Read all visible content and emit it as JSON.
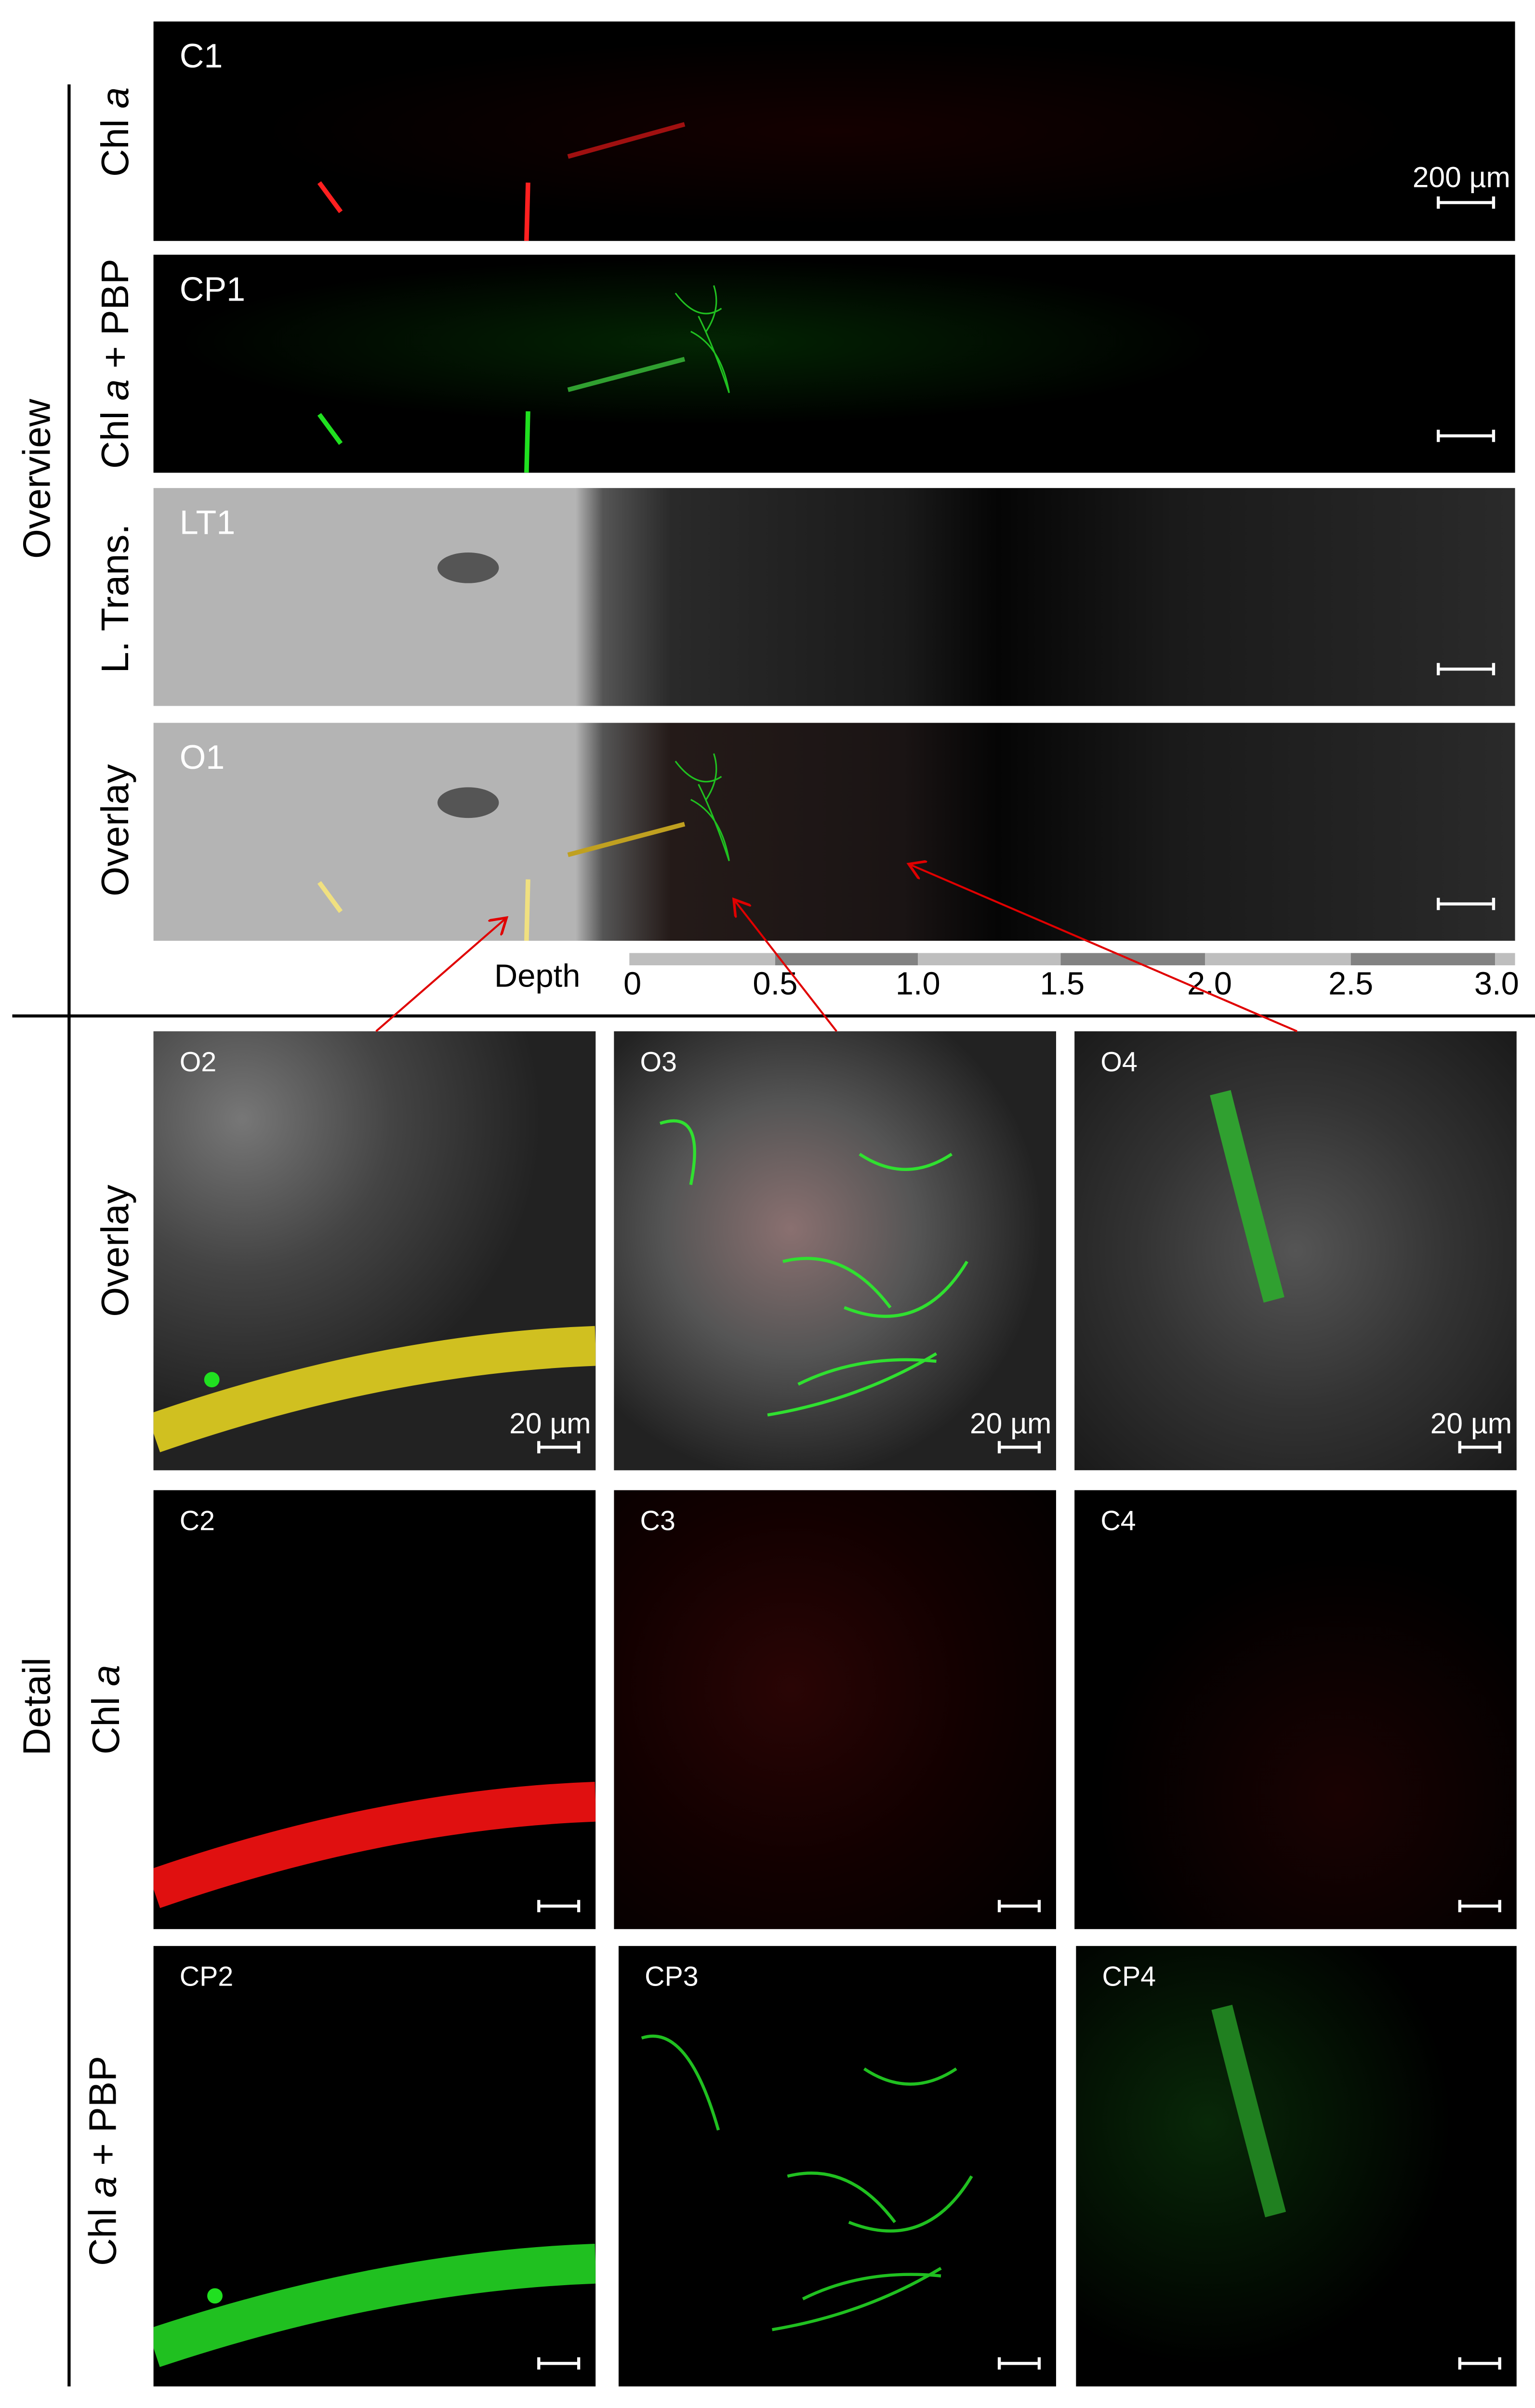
{
  "overview": {
    "section_label": "Overview",
    "rows": [
      {
        "id": "C1",
        "row_label_pre": "Chl ",
        "row_label_italic": "a",
        "row_label_post": ""
      },
      {
        "id": "CP1",
        "row_label_pre": "Chl ",
        "row_label_italic": "a",
        "row_label_post": " + PBP"
      },
      {
        "id": "LT1",
        "row_label_pre": "L. Trans.",
        "row_label_italic": "",
        "row_label_post": ""
      },
      {
        "id": "O1",
        "row_label_pre": "Overlay",
        "row_label_italic": "",
        "row_label_post": ""
      }
    ],
    "scale_bar_label": "200 µm"
  },
  "depth_bar": {
    "label": "Depth",
    "ticks": [
      "0",
      "0.5",
      "1.0",
      "1.5",
      "2.0",
      "2.5",
      "3.0"
    ],
    "colors": {
      "light": "#bebebe",
      "dark": "#828282"
    }
  },
  "detail": {
    "section_label": "Detail",
    "row_labels": [
      {
        "pre": "Overlay",
        "italic": "",
        "post": ""
      },
      {
        "pre": "Chl ",
        "italic": "a",
        "post": ""
      },
      {
        "pre": "Chl ",
        "italic": "a",
        "post": " + PBP"
      }
    ],
    "panels": [
      [
        "O2",
        "O3",
        "O4"
      ],
      [
        "C2",
        "C3",
        "C4"
      ],
      [
        "CP2",
        "CP3",
        "CP4"
      ]
    ],
    "scale_bar_label": "20 µm"
  },
  "colors": {
    "chl_a": "#ff2020",
    "pbp": "#20e020",
    "overlay_filament": "#f0e080",
    "arrow": "#e00000"
  }
}
